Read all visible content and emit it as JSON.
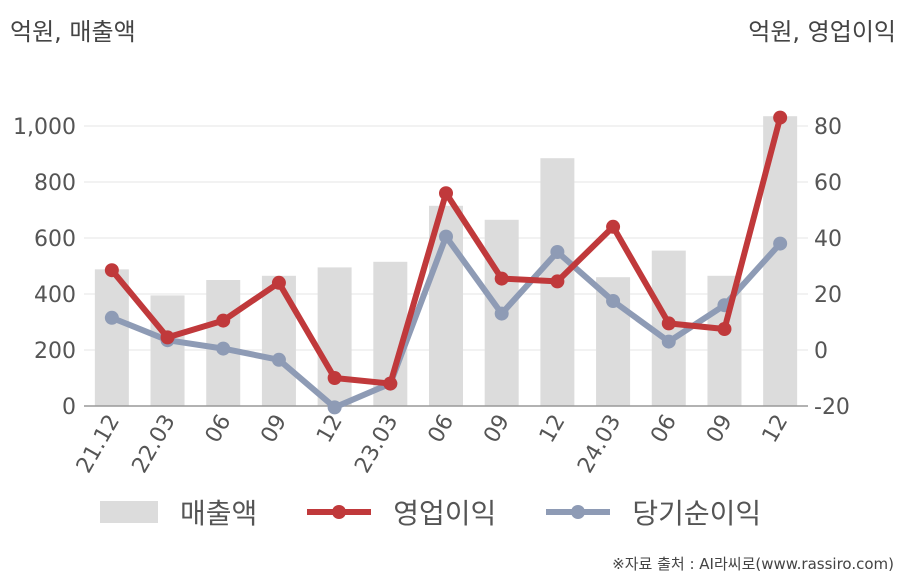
{
  "units": {
    "left": "억원, 매출액",
    "right": "억원, 영업이익"
  },
  "colors": {
    "revenue": "#dcdcdc",
    "operating_profit": "#c0393b",
    "net_profit": "#8e9bb5",
    "grid": "#e6e6e6",
    "axis": "#999999"
  },
  "legend": {
    "revenue": "매출액",
    "operating_profit": "영업이익",
    "net_profit": "당기순이익"
  },
  "source": "※자료 출처 : AI라씨로(www.rassiro.com)",
  "chart_data": {
    "type": "bar",
    "categories": [
      "21.12",
      "22.03",
      "06",
      "09",
      "12",
      "23.03",
      "06",
      "09",
      "12",
      "24.03",
      "06",
      "09",
      "12"
    ],
    "series": [
      {
        "name": "매출액",
        "type": "bar",
        "axis": "left",
        "values": [
          488,
          395,
          450,
          465,
          495,
          515,
          715,
          665,
          885,
          460,
          555,
          465,
          1035
        ]
      },
      {
        "name": "영업이익",
        "type": "line",
        "axis": "right",
        "values": [
          28.5,
          4.5,
          10.5,
          24,
          -10,
          -12,
          56,
          25.5,
          24.5,
          44,
          9.5,
          7.5,
          83
        ]
      },
      {
        "name": "당기순이익",
        "type": "line",
        "axis": "right",
        "values": [
          11.5,
          3.5,
          0.5,
          -3.5,
          -20.5,
          -12,
          40.5,
          13,
          35,
          17.5,
          3,
          16,
          38
        ]
      }
    ],
    "y_left": {
      "ticks": [
        "0",
        "200",
        "400",
        "600",
        "800",
        "1,000"
      ],
      "range": [
        0,
        1000
      ]
    },
    "y_right": {
      "ticks": [
        "-20",
        "0",
        "20",
        "40",
        "60",
        "80"
      ],
      "range": [
        -20,
        80
      ]
    },
    "grid": true,
    "legend_position": "bottom"
  }
}
